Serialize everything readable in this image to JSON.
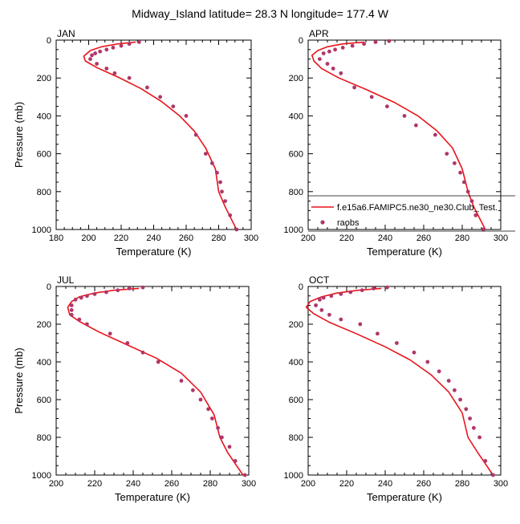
{
  "figure": {
    "title": "Midway_Island  latitude= 28.3 N longitude= 177.4 W"
  },
  "colors": {
    "model_line": "#e8141c",
    "obs_marker": "#b0366a",
    "axis": "#000000"
  },
  "legend": {
    "placement": "inside APR panel, lower-right",
    "entries": [
      {
        "label": "f.e15a6.FAMIPC5.ne30_ne30.Club_Test.",
        "style": "line"
      },
      {
        "label": "raobs",
        "style": "marker"
      }
    ]
  },
  "chart_data": [
    {
      "type": "line",
      "panel": "JAN",
      "title": "JAN",
      "xlabel": "Temperature (K)",
      "ylabel": "Pressure (mb)",
      "xlim": [
        180,
        300
      ],
      "ylim": [
        1000,
        0
      ],
      "xticks": [
        180,
        200,
        220,
        240,
        260,
        280,
        300
      ],
      "yticks": [
        0,
        200,
        400,
        600,
        800,
        1000
      ],
      "show_ylabel": true,
      "series": [
        {
          "name": "f.e15a6.FAMIPC5.ne30_ne30.Club_Test.",
          "kind": "line",
          "x": [
            229,
            218,
            208,
            201,
            197,
            198,
            205,
            218,
            232,
            245,
            256,
            265,
            272,
            278,
            280,
            284,
            291
          ],
          "y": [
            10,
            20,
            35,
            55,
            85,
            110,
            145,
            195,
            255,
            325,
            400,
            480,
            570,
            680,
            800,
            880,
            1000
          ]
        },
        {
          "name": "raobs",
          "kind": "scatter",
          "x": [
            231,
            225,
            220,
            215,
            211,
            207,
            204,
            202,
            201,
            205,
            211,
            216,
            225,
            236,
            244,
            252,
            260,
            266,
            272,
            276,
            279,
            281,
            282,
            284,
            287,
            291
          ],
          "y": [
            10,
            20,
            30,
            40,
            50,
            60,
            70,
            80,
            100,
            125,
            150,
            175,
            200,
            250,
            300,
            350,
            400,
            500,
            600,
            650,
            700,
            750,
            800,
            850,
            925,
            1000
          ]
        }
      ]
    },
    {
      "type": "line",
      "panel": "APR",
      "title": "APR",
      "xlabel": "Temperature (K)",
      "ylabel": "",
      "xlim": [
        200,
        300
      ],
      "ylim": [
        1000,
        0
      ],
      "xticks": [
        200,
        220,
        240,
        260,
        280,
        300
      ],
      "yticks": [
        0,
        200,
        400,
        600,
        800,
        1000
      ],
      "show_ylabel": false,
      "series": [
        {
          "name": "f.e15a6.FAMIPC5.ne30_ne30.Club_Test.",
          "kind": "line",
          "x": [
            229,
            218,
            210,
            205,
            202,
            203,
            207,
            216,
            230,
            245,
            257,
            267,
            275,
            280,
            283,
            286,
            292
          ],
          "y": [
            10,
            20,
            35,
            55,
            80,
            110,
            150,
            200,
            260,
            330,
            400,
            480,
            570,
            680,
            800,
            880,
            1000
          ]
        },
        {
          "name": "raobs",
          "kind": "scatter",
          "x": [
            242,
            235,
            229,
            223,
            218,
            214,
            211,
            208,
            206,
            210,
            213,
            217,
            224,
            233,
            241,
            250,
            256,
            266,
            272,
            276,
            279,
            281,
            283,
            285,
            287,
            291
          ],
          "y": [
            5,
            10,
            20,
            30,
            40,
            50,
            60,
            70,
            100,
            125,
            150,
            175,
            250,
            300,
            350,
            400,
            450,
            500,
            600,
            650,
            700,
            750,
            800,
            850,
            925,
            1000
          ]
        }
      ]
    },
    {
      "type": "line",
      "panel": "JUL",
      "title": "JUL",
      "xlabel": "Temperature (K)",
      "ylabel": "Pressure (mb)",
      "xlim": [
        200,
        300
      ],
      "ylim": [
        1000,
        0
      ],
      "xticks": [
        200,
        220,
        240,
        260,
        280,
        300
      ],
      "yticks": [
        0,
        200,
        400,
        600,
        800,
        1000
      ],
      "show_ylabel": true,
      "series": [
        {
          "name": "f.e15a6.FAMIPC5.ne30_ne30.Club_Test.",
          "kind": "line",
          "x": [
            243,
            230,
            220,
            212,
            208,
            206,
            207,
            212,
            222,
            237,
            252,
            265,
            275,
            282,
            285,
            289,
            297
          ],
          "y": [
            10,
            20,
            35,
            55,
            80,
            110,
            150,
            185,
            240,
            310,
            380,
            460,
            560,
            680,
            800,
            880,
            1000
          ]
        },
        {
          "name": "raobs",
          "kind": "scatter",
          "x": [
            245,
            238,
            232,
            226,
            220,
            216,
            213,
            210,
            208,
            208,
            208,
            212,
            216,
            228,
            237,
            245,
            253,
            265,
            271,
            275,
            279,
            281,
            284,
            286,
            290,
            293,
            298
          ],
          "y": [
            5,
            10,
            20,
            30,
            40,
            50,
            60,
            70,
            100,
            125,
            150,
            175,
            200,
            250,
            300,
            350,
            400,
            500,
            550,
            600,
            650,
            700,
            750,
            800,
            850,
            925,
            1000
          ]
        }
      ]
    },
    {
      "type": "line",
      "panel": "OCT",
      "title": "OCT",
      "xlabel": "Temperature (K)",
      "ylabel": "",
      "xlim": [
        200,
        300
      ],
      "ylim": [
        1000,
        0
      ],
      "xticks": [
        200,
        220,
        240,
        260,
        280,
        300
      ],
      "yticks": [
        0,
        200,
        400,
        600,
        800,
        1000
      ],
      "show_ylabel": false,
      "series": [
        {
          "name": "f.e15a6.FAMIPC5.ne30_ne30.Club_Test.",
          "kind": "line",
          "x": [
            238,
            226,
            215,
            207,
            201,
            199,
            203,
            211,
            225,
            240,
            253,
            264,
            273,
            280,
            283,
            288,
            296
          ],
          "y": [
            10,
            20,
            35,
            55,
            80,
            110,
            145,
            190,
            250,
            320,
            390,
            470,
            560,
            670,
            800,
            880,
            1000
          ]
        },
        {
          "name": "raobs",
          "kind": "scatter",
          "x": [
            241,
            234,
            228,
            222,
            217,
            212,
            208,
            206,
            204,
            207,
            211,
            217,
            227,
            236,
            246,
            255,
            262,
            268,
            273,
            276,
            279,
            282,
            284,
            286,
            289,
            292,
            296
          ],
          "y": [
            5,
            10,
            20,
            30,
            40,
            50,
            60,
            70,
            100,
            125,
            150,
            175,
            200,
            250,
            300,
            350,
            400,
            450,
            500,
            550,
            600,
            650,
            700,
            750,
            800,
            925,
            1000
          ]
        }
      ]
    }
  ]
}
